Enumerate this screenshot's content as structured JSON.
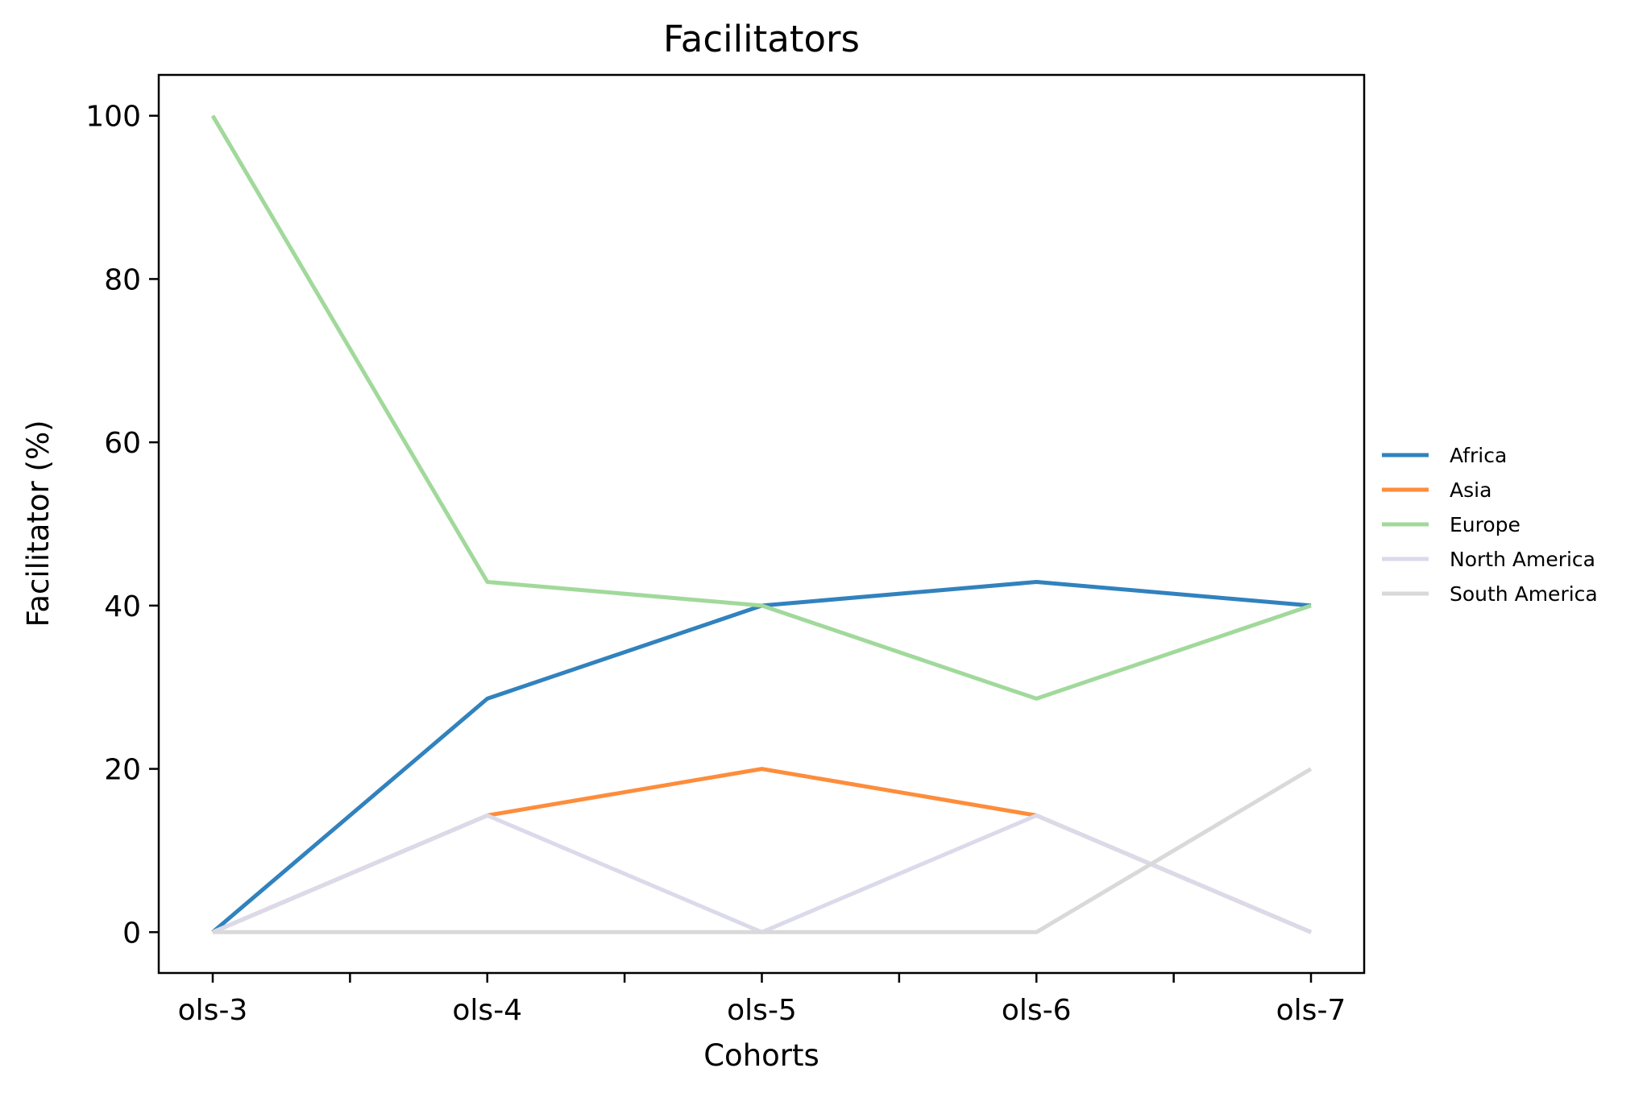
{
  "chart_data": {
    "type": "line",
    "title": "Facilitators",
    "xlabel": "Cohorts",
    "ylabel": "Facilitator (%)",
    "categories": [
      "ols-3",
      "ols-4",
      "ols-5",
      "ols-6",
      "ols-7"
    ],
    "y_ticks": [
      "0",
      "20",
      "40",
      "60",
      "80",
      "100"
    ],
    "ylim": [
      -5,
      105
    ],
    "grid": false,
    "legend_position": "right",
    "series": [
      {
        "name": "Africa",
        "color": "#3182bd",
        "values": [
          0,
          28.6,
          40,
          42.9,
          40
        ]
      },
      {
        "name": "Asia",
        "color": "#fd8d3c",
        "values": [
          0,
          14.3,
          20,
          14.3,
          0
        ]
      },
      {
        "name": "Europe",
        "color": "#a1d99b",
        "values": [
          100,
          42.9,
          40,
          28.6,
          40
        ]
      },
      {
        "name": "North America",
        "color": "#dadaeb",
        "values": [
          0,
          14.3,
          0,
          14.3,
          0
        ]
      },
      {
        "name": "South America",
        "color": "#d9d9d9",
        "values": [
          0,
          0,
          0,
          0,
          20
        ]
      }
    ]
  }
}
